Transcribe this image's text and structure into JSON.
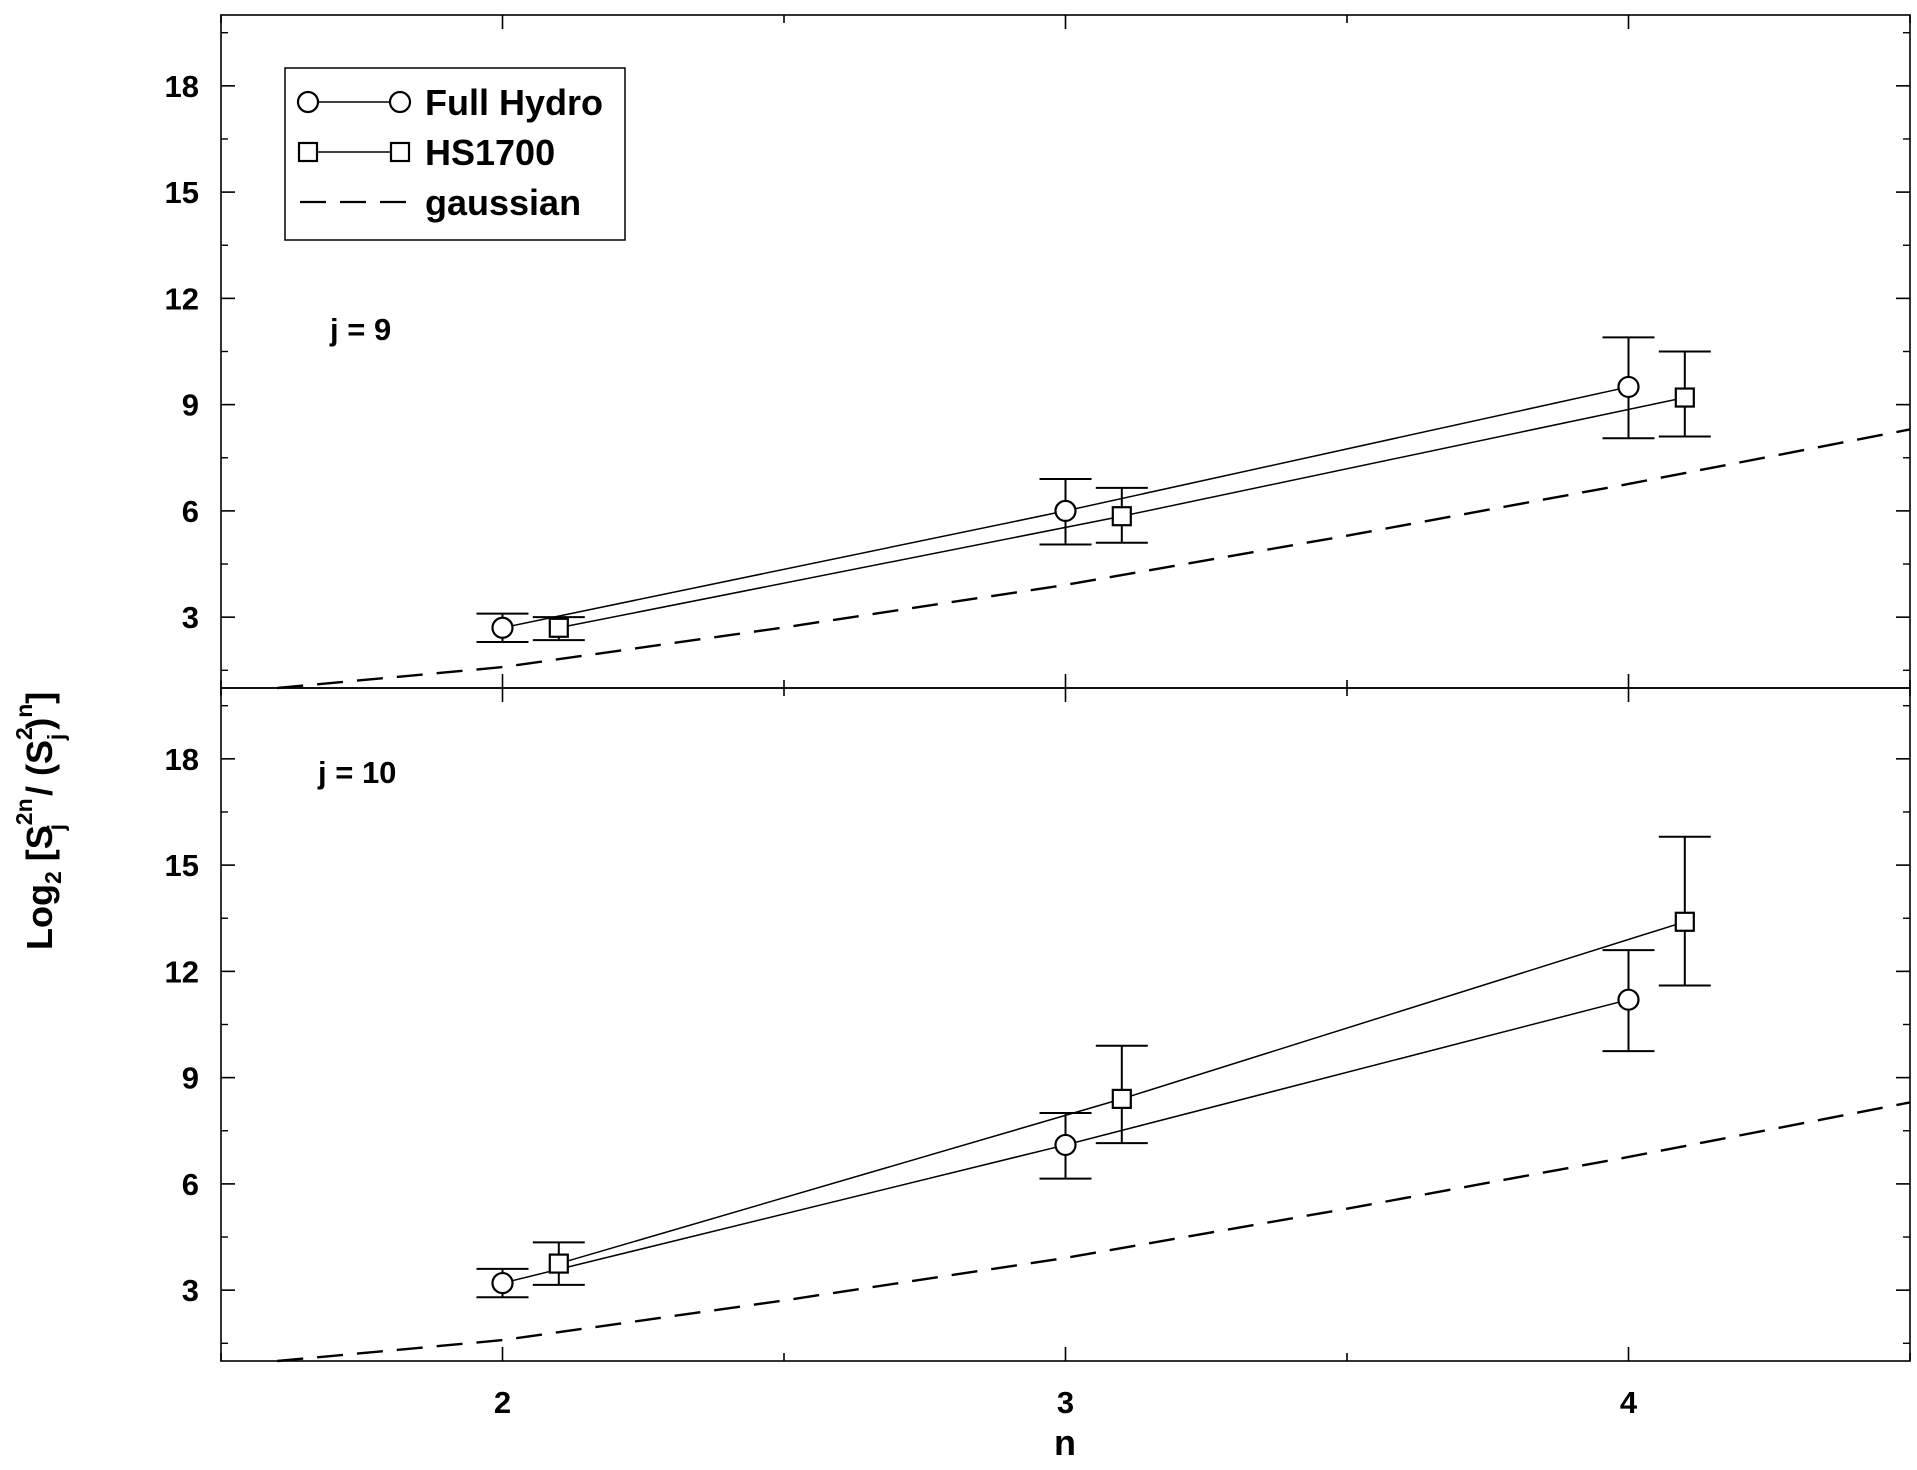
{
  "chart_data": {
    "type": "line",
    "xlabel": "n",
    "ylabel": {
      "base": "Log",
      "sub": "2",
      "open": " [S",
      "sup1": "2n",
      "sub1": "j",
      "mid": " / (S",
      "sup2": "2",
      "sub2": "j",
      "close1": ")",
      "sup3": "n",
      "close2": "]"
    },
    "xlim": [
      1.5,
      4.5
    ],
    "x_ticks": [
      2,
      3,
      4
    ],
    "y_ticks": [
      3,
      6,
      9,
      12,
      15,
      18
    ],
    "grid": false,
    "legend": {
      "position": "top-left",
      "entries": [
        {
          "label": "Full Hydro",
          "marker": "circle",
          "line": "solid"
        },
        {
          "label": "HS1700",
          "marker": "square",
          "line": "solid"
        },
        {
          "label": "gaussian",
          "marker": "none",
          "line": "dashed"
        }
      ]
    },
    "panels": [
      {
        "label": "j = 9",
        "ylim": [
          1,
          20
        ],
        "series": [
          {
            "name": "Full Hydro",
            "x": [
              2,
              3,
              4
            ],
            "y": [
              2.7,
              6.0,
              9.5
            ],
            "err_low": [
              2.3,
              5.05,
              8.05
            ],
            "err_high": [
              3.1,
              6.9,
              10.9
            ]
          },
          {
            "name": "HS1700",
            "x": [
              2.1,
              3.1,
              4.1
            ],
            "y": [
              2.7,
              5.85,
              9.2
            ],
            "err_low": [
              2.35,
              5.1,
              8.1
            ],
            "err_high": [
              3.0,
              6.65,
              10.5
            ]
          },
          {
            "name": "gaussian",
            "x": [
              1.6,
              2,
              2.5,
              3,
              3.5,
              4,
              4.5
            ],
            "y": [
              1.0,
              1.59,
              2.71,
              3.91,
              5.3,
              6.76,
              8.3
            ]
          }
        ]
      },
      {
        "label": "j = 10",
        "ylim": [
          1,
          20
        ],
        "series": [
          {
            "name": "Full Hydro",
            "x": [
              2,
              3,
              4
            ],
            "y": [
              3.2,
              7.1,
              11.2
            ],
            "err_low": [
              2.8,
              6.15,
              9.75
            ],
            "err_high": [
              3.6,
              8.0,
              12.6
            ]
          },
          {
            "name": "HS1700",
            "x": [
              2.1,
              3.1,
              4.1
            ],
            "y": [
              3.75,
              8.4,
              13.4
            ],
            "err_low": [
              3.15,
              7.15,
              11.6
            ],
            "err_high": [
              4.35,
              9.9,
              15.8
            ]
          },
          {
            "name": "gaussian",
            "x": [
              1.6,
              2,
              2.5,
              3,
              3.5,
              4,
              4.5
            ],
            "y": [
              1.0,
              1.59,
              2.71,
              3.91,
              5.3,
              6.76,
              8.3
            ]
          }
        ]
      }
    ]
  }
}
